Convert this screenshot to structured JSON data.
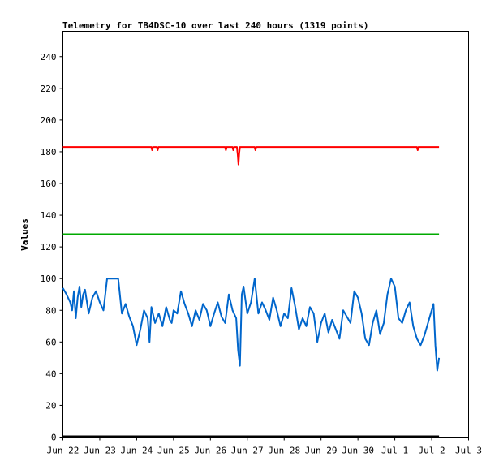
{
  "chart_data": {
    "type": "line",
    "title": "Telemetry for TB4DSC-10 over last 240 hours (1319 points)",
    "xlabel": "",
    "ylabel": "Values",
    "ylim": [
      0,
      256
    ],
    "yticks": [
      0,
      20,
      40,
      60,
      80,
      100,
      120,
      140,
      160,
      180,
      200,
      220,
      240
    ],
    "xlim": [
      0,
      11
    ],
    "xticks": [
      {
        "value": 0,
        "label": "Jun 22"
      },
      {
        "value": 1,
        "label": "Jun 23"
      },
      {
        "value": 2,
        "label": "Jun 24"
      },
      {
        "value": 3,
        "label": "Jun 25"
      },
      {
        "value": 4,
        "label": "Jun 26"
      },
      {
        "value": 5,
        "label": "Jun 27"
      },
      {
        "value": 6,
        "label": "Jun 28"
      },
      {
        "value": 7,
        "label": "Jun 29"
      },
      {
        "value": 8,
        "label": "Jun 30"
      },
      {
        "value": 9,
        "label": "Jul 1"
      },
      {
        "value": 10,
        "label": "Jul 2"
      },
      {
        "value": 11,
        "label": "Jul 3"
      }
    ],
    "grid": false,
    "series": [
      {
        "color": "#ff0000",
        "x": [
          0,
          2.4,
          2.42,
          2.44,
          2.55,
          2.57,
          2.59,
          4.4,
          4.42,
          4.44,
          4.6,
          4.62,
          4.64,
          4.72,
          4.74,
          4.76,
          4.78,
          4.8,
          5.2,
          5.22,
          5.24,
          9.6,
          9.62,
          9.64,
          10.2
        ],
        "y": [
          183,
          183,
          181,
          183,
          183,
          181,
          183,
          183,
          181,
          183,
          183,
          181,
          183,
          183,
          178,
          172,
          179,
          183,
          183,
          181,
          183,
          183,
          181,
          183,
          183
        ]
      },
      {
        "color": "#00aa00",
        "x": [
          0,
          10.2
        ],
        "y": [
          128,
          128
        ]
      },
      {
        "color": "#0066cc",
        "x": [
          0.0,
          0.1,
          0.2,
          0.25,
          0.3,
          0.35,
          0.4,
          0.45,
          0.5,
          0.55,
          0.6,
          0.7,
          0.8,
          0.9,
          1.0,
          1.1,
          1.2,
          1.3,
          1.4,
          1.5,
          1.6,
          1.7,
          1.8,
          1.9,
          2.0,
          2.1,
          2.2,
          2.3,
          2.35,
          2.4,
          2.5,
          2.6,
          2.7,
          2.8,
          2.9,
          2.95,
          3.0,
          3.1,
          3.2,
          3.3,
          3.4,
          3.5,
          3.6,
          3.7,
          3.8,
          3.9,
          4.0,
          4.1,
          4.2,
          4.3,
          4.4,
          4.5,
          4.6,
          4.7,
          4.75,
          4.8,
          4.85,
          4.9,
          5.0,
          5.1,
          5.2,
          5.3,
          5.4,
          5.5,
          5.6,
          5.7,
          5.8,
          5.9,
          6.0,
          6.1,
          6.2,
          6.3,
          6.4,
          6.5,
          6.6,
          6.7,
          6.8,
          6.9,
          7.0,
          7.1,
          7.2,
          7.3,
          7.4,
          7.5,
          7.6,
          7.7,
          7.8,
          7.9,
          8.0,
          8.1,
          8.2,
          8.3,
          8.4,
          8.5,
          8.6,
          8.7,
          8.8,
          8.9,
          9.0,
          9.1,
          9.2,
          9.3,
          9.4,
          9.5,
          9.6,
          9.7,
          9.8,
          9.9,
          10.0,
          10.05,
          10.1,
          10.15,
          10.2
        ],
        "y": [
          94,
          90,
          85,
          80,
          92,
          75,
          88,
          95,
          82,
          90,
          93,
          78,
          88,
          92,
          85,
          80,
          100,
          100,
          100,
          100,
          78,
          84,
          76,
          70,
          58,
          68,
          80,
          75,
          60,
          82,
          72,
          78,
          70,
          82,
          74,
          72,
          80,
          78,
          92,
          84,
          78,
          70,
          80,
          74,
          84,
          80,
          70,
          78,
          85,
          76,
          72,
          90,
          80,
          75,
          55,
          45,
          90,
          95,
          78,
          85,
          100,
          78,
          85,
          80,
          74,
          88,
          80,
          70,
          78,
          75,
          94,
          82,
          68,
          75,
          70,
          82,
          78,
          60,
          72,
          78,
          66,
          74,
          68,
          62,
          80,
          76,
          72,
          92,
          88,
          78,
          62,
          58,
          72,
          80,
          65,
          72,
          90,
          100,
          95,
          75,
          72,
          80,
          85,
          70,
          62,
          58,
          64,
          72,
          80,
          84,
          58,
          42,
          50
        ]
      },
      {
        "color": "#000000",
        "x": [
          0,
          10.2
        ],
        "y": [
          0.5,
          0.5
        ]
      }
    ]
  }
}
